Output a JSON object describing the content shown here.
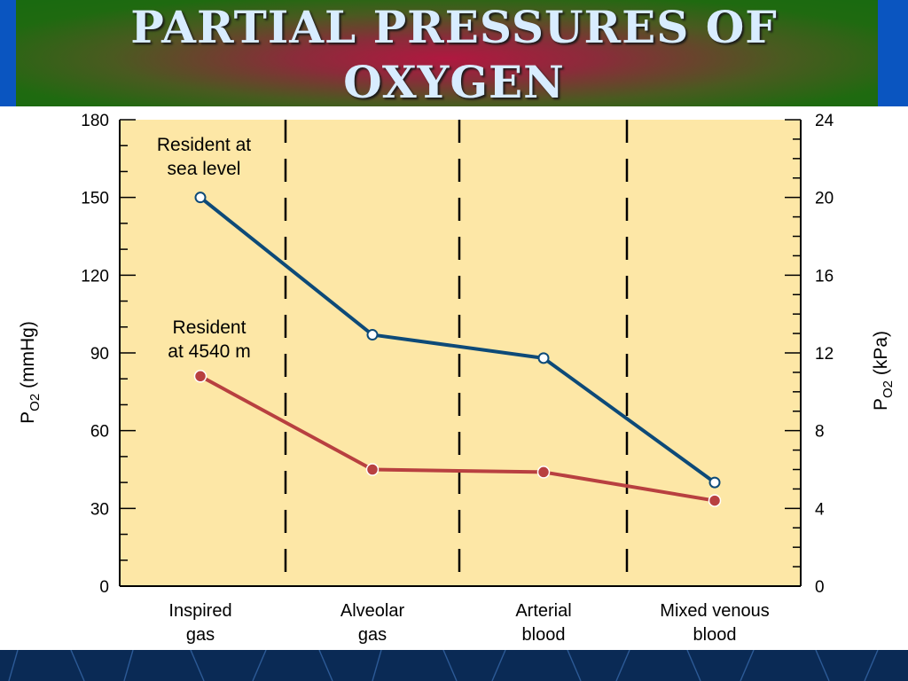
{
  "slide": {
    "title_line1": "PARTIAL PRESSURES OF",
    "title_line2": "OXYGEN"
  },
  "colors": {
    "plot_bg": "#fde7a6",
    "sea_level_line": "#0d4a78",
    "altitude_line": "#b84040"
  },
  "chart_data": {
    "type": "line",
    "title": "PARTIAL PRESSURES OF OXYGEN",
    "categories": [
      [
        "Inspired",
        "gas"
      ],
      [
        "Alveolar",
        "gas"
      ],
      [
        "Arterial",
        "blood"
      ],
      [
        "Mixed venous",
        "blood"
      ]
    ],
    "series": [
      {
        "name": "Resident at sea level",
        "label_lines": [
          "Resident at",
          "sea level"
        ],
        "values": [
          150,
          97,
          88,
          40
        ],
        "color": "#0d4a78",
        "marker": "open-circle"
      },
      {
        "name": "Resident at 4540 m",
        "label_lines": [
          "Resident",
          "at 4540  m"
        ],
        "values": [
          81,
          45,
          44,
          33
        ],
        "color": "#b84040",
        "marker": "filled-circle"
      }
    ],
    "y_left": {
      "label": "PO2 (mmHg)",
      "label_main": "P",
      "label_sub_letter": "O",
      "label_sub": "2",
      "label_unit": " (mmHg)",
      "ylim": [
        0,
        180
      ],
      "ticks": [
        0,
        30,
        60,
        90,
        120,
        150,
        180
      ]
    },
    "y_right": {
      "label": "PO2 (kPa)",
      "label_main": "P",
      "label_sub_letter": "O",
      "label_sub": "2",
      "label_unit": " (kPa)",
      "ylim": [
        0,
        24
      ],
      "ticks": [
        0,
        4,
        8,
        12,
        16,
        20,
        24
      ]
    },
    "grid": false,
    "category_dividers": "dashed"
  }
}
